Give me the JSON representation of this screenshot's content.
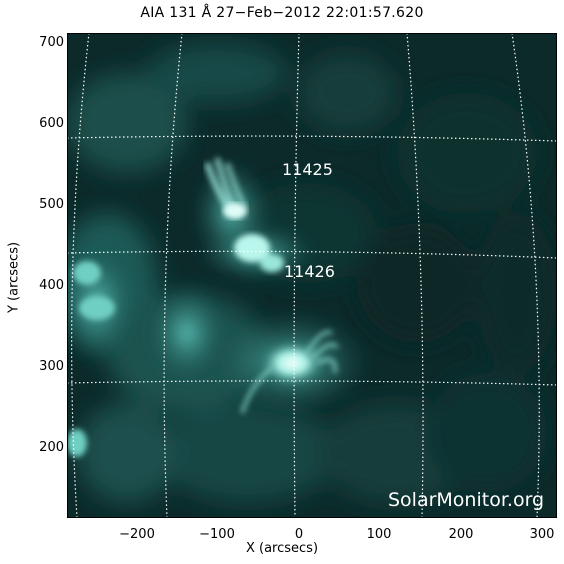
{
  "title": "AIA 131 Å 27−Feb−2012 22:01:57.620",
  "axes": {
    "xlabel": "X (arcsecs)",
    "ylabel": "Y (arcsecs)",
    "xticks": [
      "−200",
      "−100",
      "0",
      "100",
      "200",
      "300"
    ],
    "yticks": [
      "700",
      "600",
      "500",
      "400",
      "300",
      "200"
    ]
  },
  "regions": [
    {
      "label": "11425"
    },
    {
      "label": "11426"
    }
  ],
  "watermark": "SolarMonitor.org",
  "colors": {
    "background": "#0a2424",
    "bright": "#cffff8",
    "grid": "#ffffff"
  }
}
